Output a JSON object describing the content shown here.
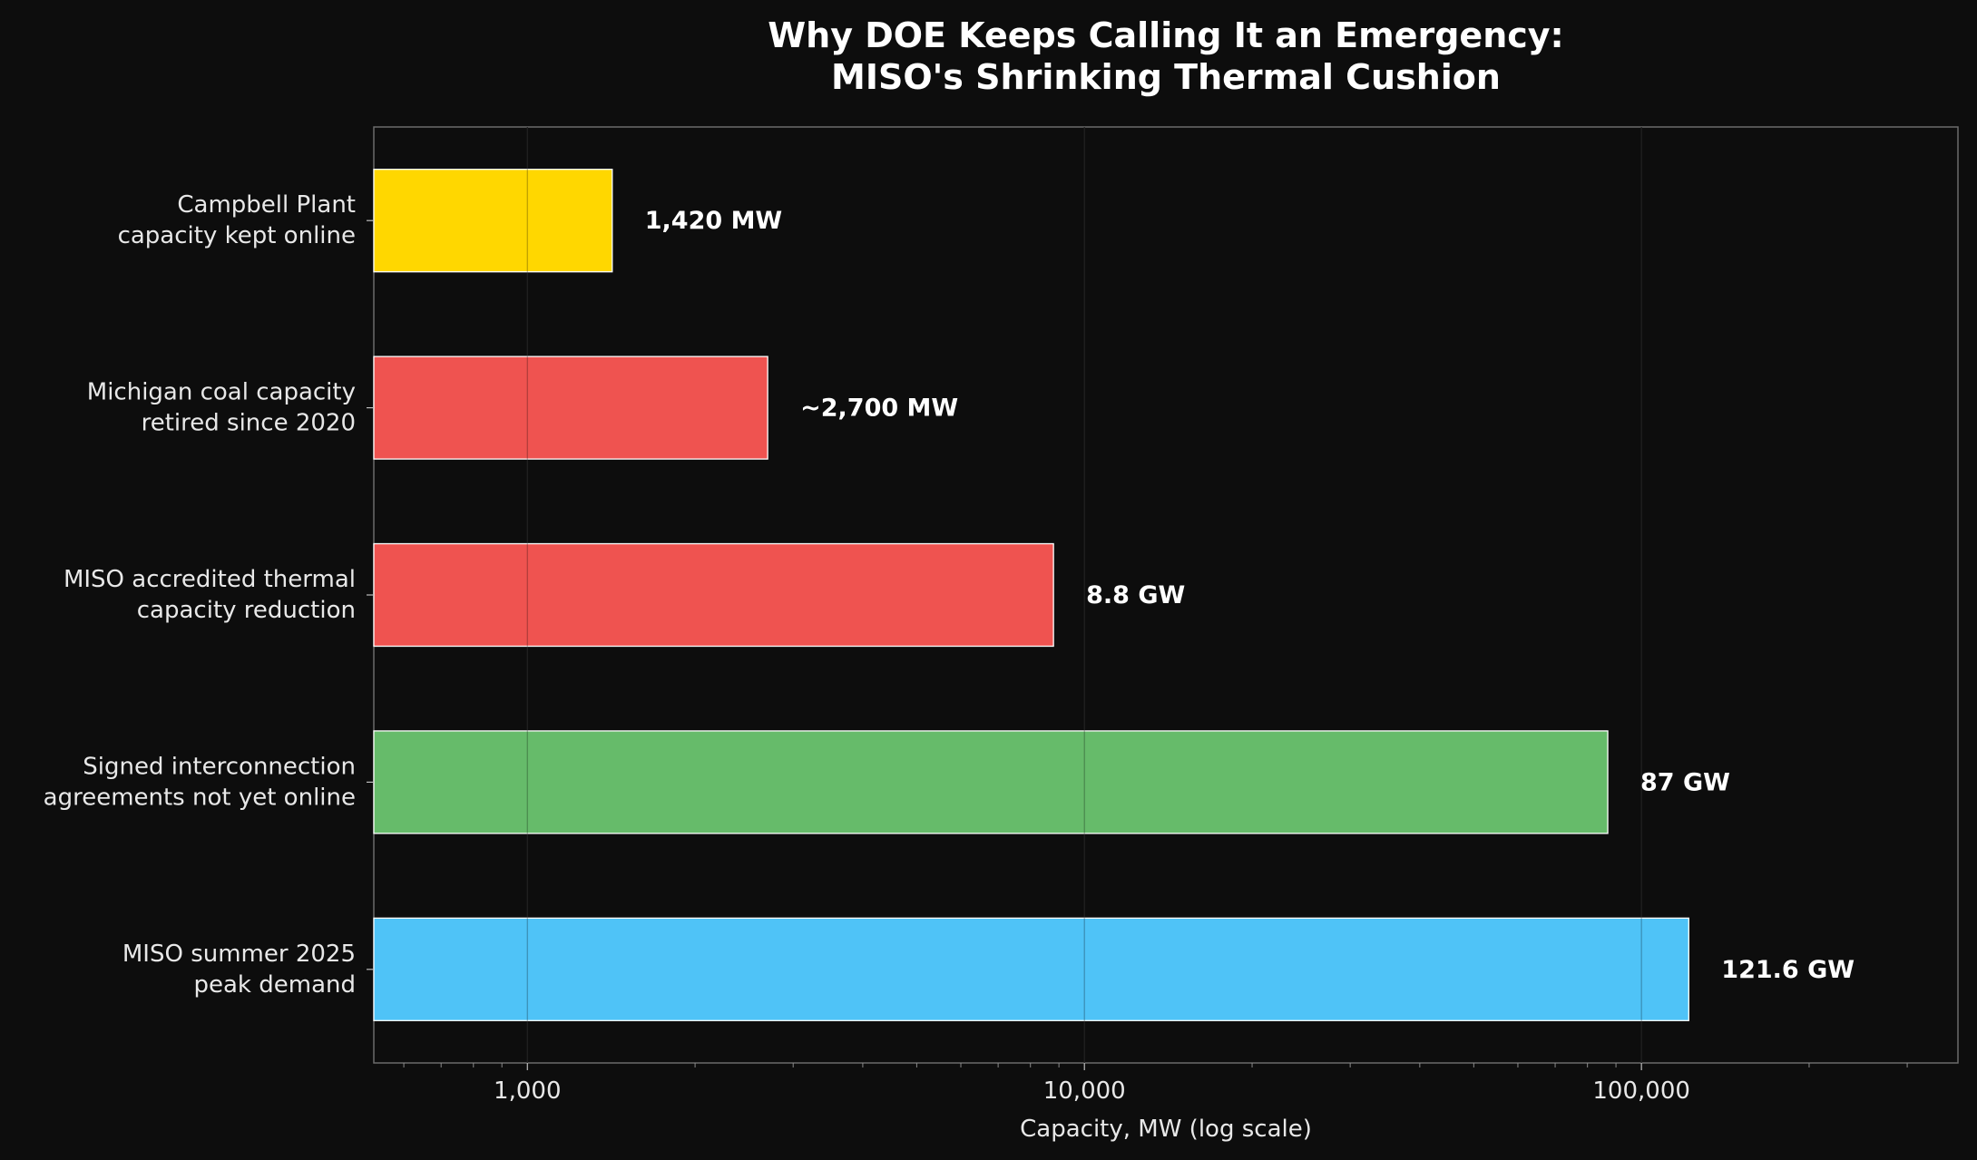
{
  "chart_data": {
    "type": "bar",
    "orientation": "horizontal",
    "title_lines": [
      "Why DOE Keeps Calling It an Emergency:",
      "MISO's Shrinking Thermal Cushion"
    ],
    "xlabel": "Capacity, MW (log scale)",
    "ylabel": "",
    "xscale": "log",
    "xlim": [
      530,
      370000
    ],
    "xticks": [
      1000,
      10000,
      100000
    ],
    "xtick_labels": [
      "1,000",
      "10,000",
      "100,000"
    ],
    "grid": "vertical",
    "categories": [
      [
        "Campbell Plant",
        "capacity kept online"
      ],
      [
        "Michigan coal capacity",
        "retired since 2020"
      ],
      [
        "MISO accredited thermal",
        "capacity reduction"
      ],
      [
        "Signed interconnection",
        "agreements not yet online"
      ],
      [
        "MISO summer 2025",
        "peak demand"
      ]
    ],
    "values": [
      1420,
      2700,
      8800,
      87000,
      121600
    ],
    "value_labels": [
      "1,420 MW",
      "~2,700 MW",
      "8.8 GW",
      "87 GW",
      "121.6 GW"
    ],
    "colors": [
      "#ffd700",
      "#ef5350",
      "#ef5350",
      "#66bb6a",
      "#4fc3f7"
    ]
  }
}
